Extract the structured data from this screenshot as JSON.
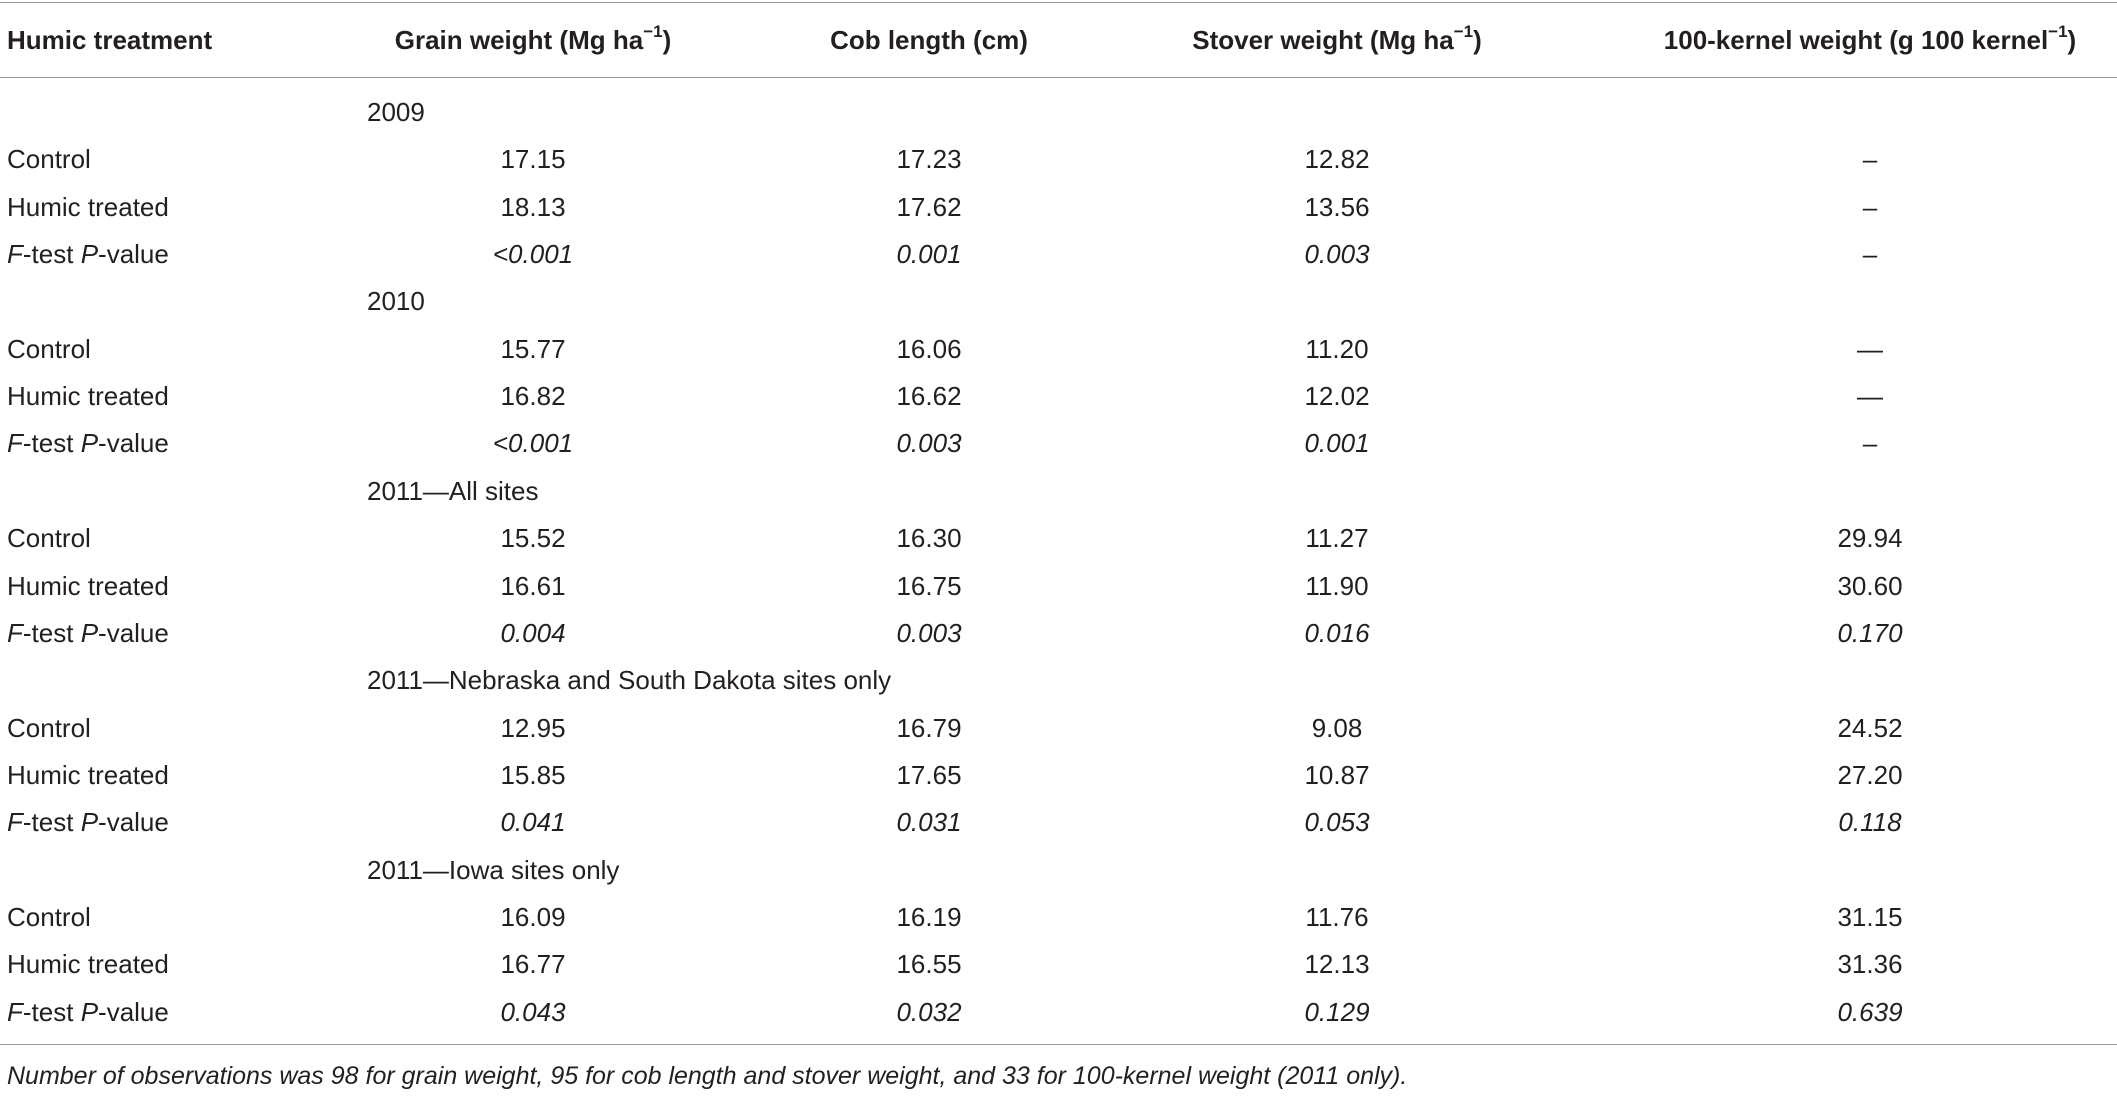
{
  "table": {
    "columns": [
      {
        "text": "Humic treatment"
      },
      {
        "text": "Grain weight (Mg ha",
        "sup": "−1",
        "after": ")"
      },
      {
        "text": "Cob length (cm)"
      },
      {
        "text": "Stover weight (Mg ha",
        "sup": "−1",
        "after": ")"
      },
      {
        "text": "100-kernel weight (g 100 kernel",
        "sup": "−1",
        "after": ")"
      }
    ],
    "groups": [
      {
        "title": "2009",
        "rows": [
          {
            "label": "Control",
            "values": [
              "17.15",
              "17.23",
              "12.82",
              "–"
            ]
          },
          {
            "label": "Humic treated",
            "values": [
              "18.13",
              "17.62",
              "13.56",
              "–"
            ]
          },
          {
            "label_parts": [
              {
                "text": "F",
                "italic": true
              },
              {
                "text": "-test "
              },
              {
                "text": "P",
                "italic": true
              },
              {
                "text": "-value"
              }
            ],
            "italic": true,
            "values": [
              "<0.001",
              "0.001",
              "0.003",
              "–"
            ]
          }
        ]
      },
      {
        "title": "2010",
        "rows": [
          {
            "label": "Control",
            "values": [
              "15.77",
              "16.06",
              "11.20",
              "—"
            ]
          },
          {
            "label": "Humic treated",
            "values": [
              "16.82",
              "16.62",
              "12.02",
              "—"
            ]
          },
          {
            "label_parts": [
              {
                "text": "F",
                "italic": true
              },
              {
                "text": "-test "
              },
              {
                "text": "P",
                "italic": true
              },
              {
                "text": "-value"
              }
            ],
            "italic": true,
            "values": [
              "<0.001",
              "0.003",
              "0.001",
              "–"
            ]
          }
        ]
      },
      {
        "title": "2011—All sites",
        "rows": [
          {
            "label": "Control",
            "values": [
              "15.52",
              "16.30",
              "11.27",
              "29.94"
            ]
          },
          {
            "label": "Humic treated",
            "values": [
              "16.61",
              "16.75",
              "11.90",
              "30.60"
            ]
          },
          {
            "label_parts": [
              {
                "text": "F",
                "italic": true
              },
              {
                "text": "-test "
              },
              {
                "text": "P",
                "italic": true
              },
              {
                "text": "-value"
              }
            ],
            "italic": true,
            "values": [
              "0.004",
              "0.003",
              "0.016",
              "0.170"
            ]
          }
        ]
      },
      {
        "title": "2011—Nebraska and South Dakota sites only",
        "rows": [
          {
            "label": "Control",
            "values": [
              "12.95",
              "16.79",
              "9.08",
              "24.52"
            ]
          },
          {
            "label": "Humic treated",
            "values": [
              "15.85",
              "17.65",
              "10.87",
              "27.20"
            ]
          },
          {
            "label_parts": [
              {
                "text": "F",
                "italic": true
              },
              {
                "text": "-test "
              },
              {
                "text": "P",
                "italic": true
              },
              {
                "text": "-value"
              }
            ],
            "italic": true,
            "values": [
              "0.041",
              "0.031",
              "0.053",
              "0.118"
            ]
          }
        ]
      },
      {
        "title": "2011—Iowa sites only",
        "rows": [
          {
            "label": "Control",
            "values": [
              "16.09",
              "16.19",
              "11.76",
              "31.15"
            ]
          },
          {
            "label": "Humic treated",
            "values": [
              "16.77",
              "16.55",
              "12.13",
              "31.36"
            ]
          },
          {
            "label_parts": [
              {
                "text": "F",
                "italic": true
              },
              {
                "text": "-test "
              },
              {
                "text": "P",
                "italic": true
              },
              {
                "text": "-value"
              }
            ],
            "italic": true,
            "values": [
              "0.043",
              "0.032",
              "0.129",
              "0.639"
            ]
          }
        ]
      }
    ]
  },
  "footnote": "Number of observations was 98 for grain weight, 95 for cob length and stover weight, and 33 for 100-kernel weight (2011 only)."
}
